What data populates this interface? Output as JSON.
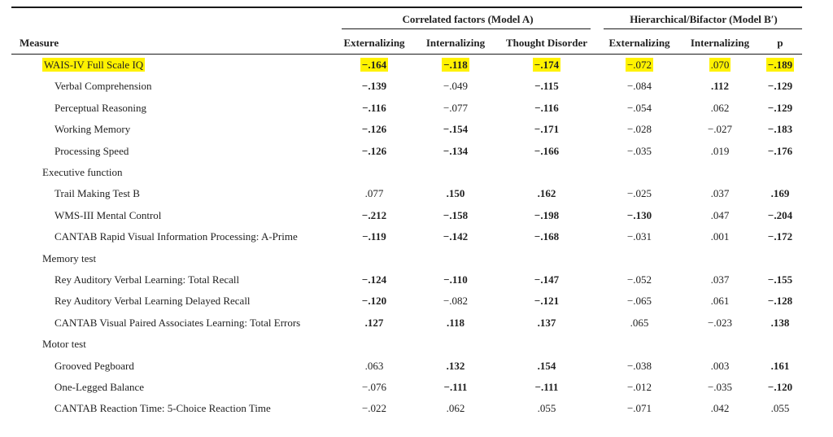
{
  "header": {
    "group_a": "Correlated factors (Model A)",
    "group_b": "Hierarchical/Bifactor (Model B′)",
    "columns": [
      "Measure",
      "Externalizing",
      "Internalizing",
      "Thought Disorder",
      "Externalizing",
      "Internalizing",
      "p"
    ]
  },
  "highlight_color": "#fff200",
  "rows": [
    {
      "label": "WAIS-IV Full Scale IQ",
      "indent": false,
      "highlight": true,
      "values": [
        "−.164",
        "−.118",
        "−.174",
        "−.072",
        ".070",
        "−.189"
      ],
      "bold": [
        true,
        true,
        true,
        false,
        false,
        true
      ]
    },
    {
      "label": "Verbal Comprehension",
      "indent": true,
      "values": [
        "−.139",
        "−.049",
        "−.115",
        "−.084",
        ".112",
        "−.129"
      ],
      "bold": [
        true,
        false,
        true,
        false,
        true,
        true
      ]
    },
    {
      "label": "Perceptual Reasoning",
      "indent": true,
      "values": [
        "−.116",
        "−.077",
        "−.116",
        "−.054",
        ".062",
        "−.129"
      ],
      "bold": [
        true,
        false,
        true,
        false,
        false,
        true
      ]
    },
    {
      "label": "Working Memory",
      "indent": true,
      "values": [
        "−.126",
        "−.154",
        "−.171",
        "−.028",
        "−.027",
        "−.183"
      ],
      "bold": [
        true,
        true,
        true,
        false,
        false,
        true
      ]
    },
    {
      "label": "Processing Speed",
      "indent": true,
      "values": [
        "−.126",
        "−.134",
        "−.166",
        "−.035",
        ".019",
        "−.176"
      ],
      "bold": [
        true,
        true,
        true,
        false,
        false,
        true
      ]
    },
    {
      "label": "Executive function",
      "indent": false,
      "values": []
    },
    {
      "label": "Trail Making Test B",
      "indent": true,
      "values": [
        ".077",
        ".150",
        ".162",
        "−.025",
        ".037",
        ".169"
      ],
      "bold": [
        false,
        true,
        true,
        false,
        false,
        true
      ]
    },
    {
      "label": "WMS-III Mental Control",
      "indent": true,
      "values": [
        "−.212",
        "−.158",
        "−.198",
        "−.130",
        ".047",
        "−.204"
      ],
      "bold": [
        true,
        true,
        true,
        true,
        false,
        true
      ]
    },
    {
      "label": "CANTAB Rapid Visual Information Processing: A-Prime",
      "indent": true,
      "values": [
        "−.119",
        "−.142",
        "−.168",
        "−.031",
        ".001",
        "−.172"
      ],
      "bold": [
        true,
        true,
        true,
        false,
        false,
        true
      ]
    },
    {
      "label": "Memory test",
      "indent": false,
      "values": []
    },
    {
      "label": "Rey Auditory Verbal Learning: Total Recall",
      "indent": true,
      "values": [
        "−.124",
        "−.110",
        "−.147",
        "−.052",
        ".037",
        "−.155"
      ],
      "bold": [
        true,
        true,
        true,
        false,
        false,
        true
      ]
    },
    {
      "label": "Rey Auditory Verbal Learning Delayed Recall",
      "indent": true,
      "values": [
        "−.120",
        "−.082",
        "−.121",
        "−.065",
        ".061",
        "−.128"
      ],
      "bold": [
        true,
        false,
        true,
        false,
        false,
        true
      ]
    },
    {
      "label": "CANTAB Visual Paired Associates Learning: Total Errors",
      "indent": true,
      "values": [
        ".127",
        ".118",
        ".137",
        ".065",
        "−.023",
        ".138"
      ],
      "bold": [
        true,
        true,
        true,
        false,
        false,
        true
      ]
    },
    {
      "label": "Motor test",
      "indent": false,
      "values": []
    },
    {
      "label": "Grooved Pegboard",
      "indent": true,
      "values": [
        ".063",
        ".132",
        ".154",
        "−.038",
        ".003",
        ".161"
      ],
      "bold": [
        false,
        true,
        true,
        false,
        false,
        true
      ]
    },
    {
      "label": "One-Legged Balance",
      "indent": true,
      "values": [
        "−.076",
        "−.111",
        "−.111",
        "−.012",
        "−.035",
        "−.120"
      ],
      "bold": [
        false,
        true,
        true,
        false,
        false,
        true
      ]
    },
    {
      "label": "CANTAB Reaction Time: 5-Choice Reaction Time",
      "indent": true,
      "values": [
        "−.022",
        ".062",
        ".055",
        "−.071",
        ".042",
        ".055"
      ],
      "bold": [
        false,
        false,
        false,
        false,
        false,
        false
      ]
    }
  ]
}
